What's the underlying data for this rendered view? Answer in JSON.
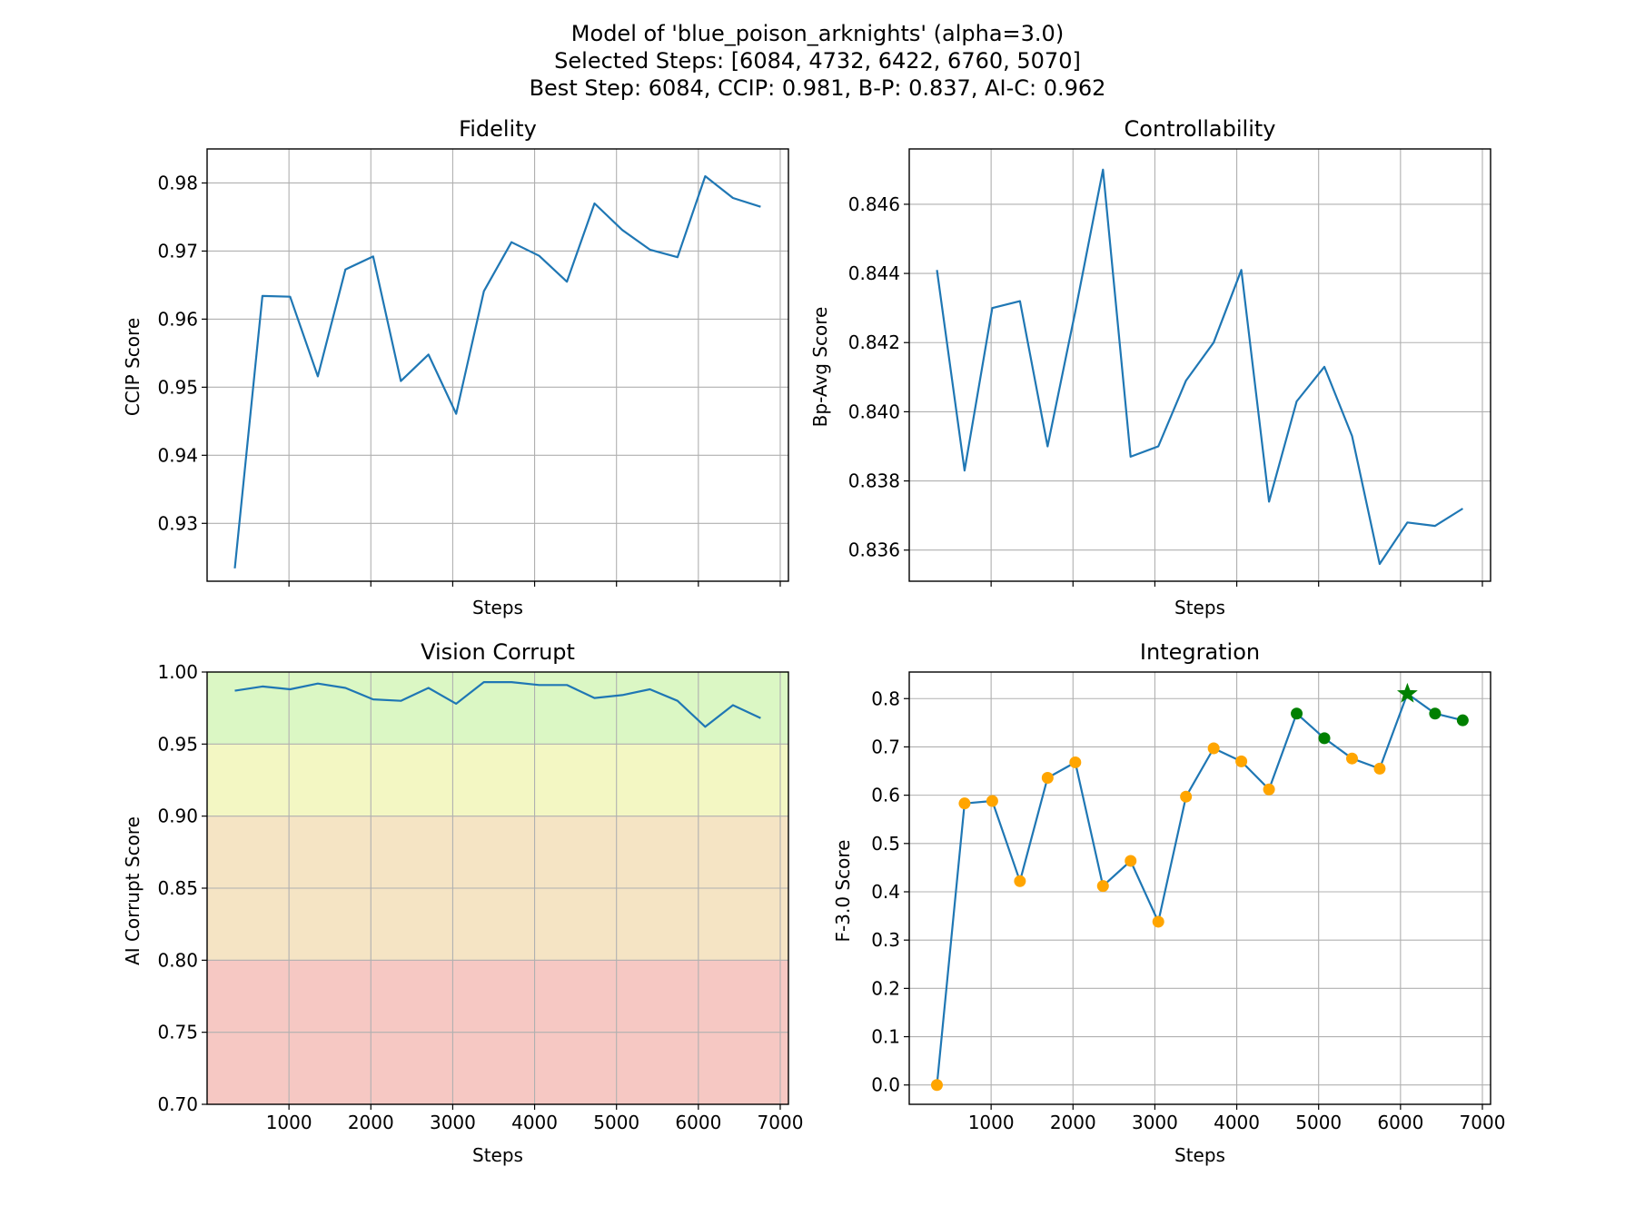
{
  "figure": {
    "title_lines": [
      "Model of 'blue_poison_arknights' (alpha=3.0)",
      "Selected Steps: [6084, 4732, 6422, 6760, 5070]",
      "Best Step: 6084, CCIP: 0.981, B-P: 0.837, AI-C: 0.962"
    ]
  },
  "colors": {
    "line": "#1f77b4",
    "grid": "#b0b0b0",
    "point_normal": "#ffa500",
    "point_selected": "#008000",
    "band_green": "#dbf7c4",
    "band_yellow": "#f3f7c3",
    "band_orange": "#f5e4c4",
    "band_red": "#f6c8c3"
  },
  "chart_data": [
    {
      "type": "line",
      "title": "Fidelity",
      "xlabel": "Steps",
      "ylabel": "CCIP Score",
      "xlim": [
        0,
        7100
      ],
      "ylim": [
        0.9215,
        0.985
      ],
      "xticks": [
        1000,
        2000,
        3000,
        4000,
        5000,
        6000,
        7000
      ],
      "show_xtick_labels": false,
      "yticks": [
        0.93,
        0.94,
        0.95,
        0.96,
        0.97,
        0.98
      ],
      "ytick_labels": [
        "0.93",
        "0.94",
        "0.95",
        "0.96",
        "0.97",
        "0.98"
      ],
      "grid": true,
      "x": [
        338,
        676,
        1014,
        1352,
        1690,
        2028,
        2366,
        2704,
        3042,
        3380,
        3718,
        4056,
        4394,
        4732,
        5070,
        5408,
        5746,
        6084,
        6422,
        6760
      ],
      "y": [
        0.9234,
        0.9634,
        0.9633,
        0.9516,
        0.9673,
        0.9692,
        0.9509,
        0.9548,
        0.9461,
        0.9641,
        0.9713,
        0.9693,
        0.9655,
        0.977,
        0.9731,
        0.9702,
        0.9691,
        0.981,
        0.9778,
        0.9765
      ]
    },
    {
      "type": "line",
      "title": "Controllability",
      "xlabel": "Steps",
      "ylabel": "Bp-Avg Score",
      "xlim": [
        0,
        7100
      ],
      "ylim": [
        0.8351,
        0.8476
      ],
      "xticks": [
        1000,
        2000,
        3000,
        4000,
        5000,
        6000,
        7000
      ],
      "show_xtick_labels": false,
      "yticks": [
        0.836,
        0.838,
        0.84,
        0.842,
        0.844,
        0.846
      ],
      "ytick_labels": [
        "0.836",
        "0.838",
        "0.840",
        "0.842",
        "0.844",
        "0.846"
      ],
      "grid": true,
      "x": [
        338,
        676,
        1014,
        1352,
        1690,
        2028,
        2366,
        2704,
        3042,
        3380,
        3718,
        4056,
        4394,
        4732,
        5070,
        5408,
        5746,
        6084,
        6422,
        6760
      ],
      "y": [
        0.8441,
        0.8383,
        0.843,
        0.8432,
        0.839,
        0.8429,
        0.847,
        0.8387,
        0.839,
        0.8409,
        0.842,
        0.8441,
        0.8374,
        0.8403,
        0.8413,
        0.8393,
        0.8356,
        0.8368,
        0.8367,
        0.8372
      ]
    },
    {
      "type": "line",
      "title": "Vision Corrupt",
      "xlabel": "Steps",
      "ylabel": "AI Corrupt Score",
      "xlim": [
        0,
        7100
      ],
      "ylim": [
        0.7,
        1.0
      ],
      "xticks": [
        1000,
        2000,
        3000,
        4000,
        5000,
        6000,
        7000
      ],
      "show_xtick_labels": true,
      "yticks": [
        0.7,
        0.75,
        0.8,
        0.85,
        0.9,
        0.95,
        1.0
      ],
      "ytick_labels": [
        "0.70",
        "0.75",
        "0.80",
        "0.85",
        "0.90",
        "0.95",
        "1.00"
      ],
      "grid": true,
      "bands": [
        {
          "from": 0.95,
          "to": 1.0,
          "color": "band_green"
        },
        {
          "from": 0.9,
          "to": 0.95,
          "color": "band_yellow"
        },
        {
          "from": 0.8,
          "to": 0.9,
          "color": "band_orange"
        },
        {
          "from": 0.7,
          "to": 0.8,
          "color": "band_red"
        }
      ],
      "x": [
        338,
        676,
        1014,
        1352,
        1690,
        2028,
        2366,
        2704,
        3042,
        3380,
        3718,
        4056,
        4394,
        4732,
        5070,
        5408,
        5746,
        6084,
        6422,
        6760
      ],
      "y": [
        0.987,
        0.99,
        0.988,
        0.992,
        0.989,
        0.981,
        0.98,
        0.989,
        0.978,
        0.993,
        0.993,
        0.991,
        0.991,
        0.982,
        0.984,
        0.988,
        0.98,
        0.962,
        0.977,
        0.968
      ]
    },
    {
      "type": "line",
      "title": "Integration",
      "xlabel": "Steps",
      "ylabel": "F-3.0 Score",
      "xlim": [
        0,
        7100
      ],
      "ylim": [
        -0.04,
        0.855
      ],
      "xticks": [
        1000,
        2000,
        3000,
        4000,
        5000,
        6000,
        7000
      ],
      "show_xtick_labels": true,
      "yticks": [
        0.0,
        0.1,
        0.2,
        0.3,
        0.4,
        0.5,
        0.6,
        0.7,
        0.8
      ],
      "ytick_labels": [
        "0.0",
        "0.1",
        "0.2",
        "0.3",
        "0.4",
        "0.5",
        "0.6",
        "0.7",
        "0.8"
      ],
      "grid": true,
      "x": [
        338,
        676,
        1014,
        1352,
        1690,
        2028,
        2366,
        2704,
        3042,
        3380,
        3718,
        4056,
        4394,
        4732,
        5070,
        5408,
        5746,
        6084,
        6422,
        6760
      ],
      "y": [
        0.0,
        0.583,
        0.588,
        0.422,
        0.636,
        0.668,
        0.412,
        0.464,
        0.338,
        0.597,
        0.697,
        0.67,
        0.612,
        0.769,
        0.718,
        0.676,
        0.655,
        0.81,
        0.769,
        0.755
      ],
      "selected_steps": [
        4732,
        5070,
        6422,
        6760
      ],
      "best_step": 6084
    }
  ]
}
